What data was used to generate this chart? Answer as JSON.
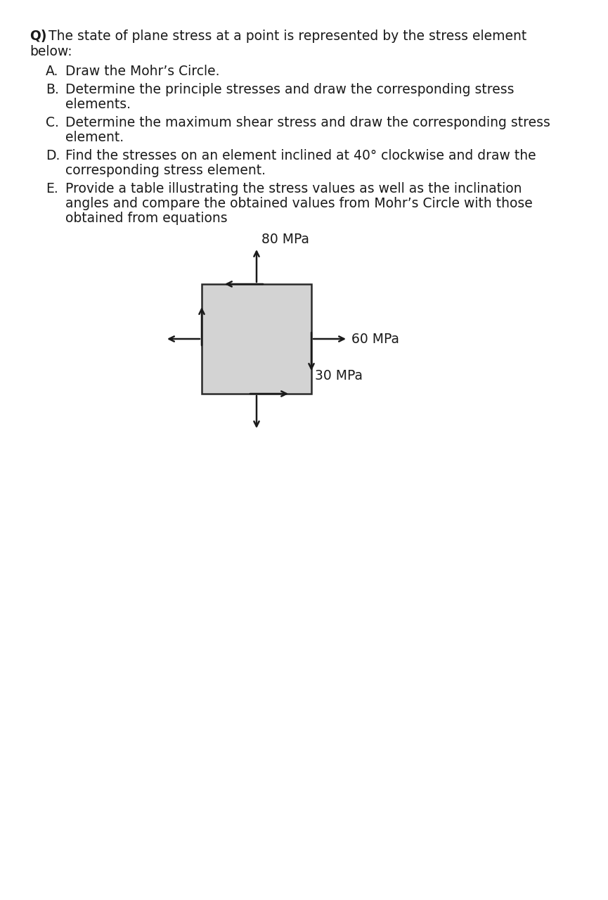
{
  "title_bold": "Q)",
  "title_rest": "The state of plane stress at a point is represented by the stress element",
  "title_line2": "below:",
  "items": [
    {
      "letter": "A.",
      "lines": [
        "Draw the Mohr’s Circle."
      ]
    },
    {
      "letter": "B.",
      "lines": [
        "Determine the principle stresses and draw the corresponding stress",
        "elements."
      ]
    },
    {
      "letter": "C.",
      "lines": [
        "Determine the maximum shear stress and draw the corresponding stress",
        "element."
      ]
    },
    {
      "letter": "D.",
      "lines": [
        "Find the stresses on an element inclined at 40° clockwise and draw the",
        "corresponding stress element."
      ]
    },
    {
      "letter": "E.",
      "lines": [
        "Provide a table illustrating the stress values as well as the inclination",
        "angles and compare the obtained values from Mohr’s Circle with those",
        "obtained from equations"
      ]
    }
  ],
  "stress_element": {
    "label_sigma_x": "60 MPa",
    "label_sigma_y": "80 MPa",
    "label_tau": "30 MPa",
    "box_color": "#d3d3d3",
    "box_edge_color": "#2a2a2a"
  },
  "font_size_body": 13.5,
  "font_size_labels": 13.5,
  "background_color": "#ffffff",
  "text_color": "#1a1a1a"
}
